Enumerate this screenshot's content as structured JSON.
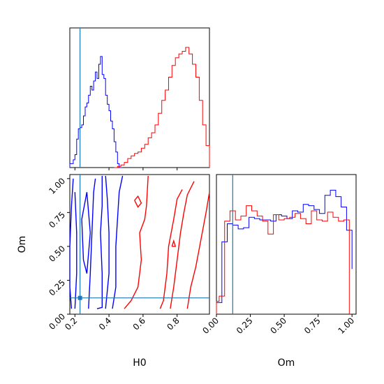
{
  "chart_data": {
    "type": "corner",
    "parameters": [
      "H0",
      "Om"
    ],
    "colors": {
      "sample_a": "#0000ff",
      "sample_b": "#ff0000",
      "truth": "#1f77b4"
    },
    "truth": {
      "H0": 0.23,
      "Om": 0.12
    },
    "axes": {
      "H0": {
        "xlabel": "H0",
        "xlim": [
          0.17,
          0.99
        ],
        "ticks": [
          0.2,
          0.4,
          0.6,
          0.8
        ],
        "tick_labels": [
          "0.2",
          "0.4",
          "0.6",
          "0.8"
        ]
      },
      "Om": {
        "xlabel": "Om",
        "ylabel": "Om",
        "lim": [
          0.0,
          1.03
        ],
        "ticks": [
          0.0,
          0.25,
          0.5,
          0.75,
          1.0
        ],
        "tick_labels": [
          "0.00",
          "0.25",
          "0.50",
          "0.75",
          "1.00"
        ]
      }
    },
    "hist_H0": {
      "series": [
        {
          "color": "#0000ff",
          "x": [
            0.17,
            0.19,
            0.2,
            0.21,
            0.22,
            0.23,
            0.24,
            0.25,
            0.26,
            0.27,
            0.28,
            0.29,
            0.3,
            0.31,
            0.32,
            0.33,
            0.34,
            0.35,
            0.36,
            0.37,
            0.38,
            0.39,
            0.4,
            0.41,
            0.42,
            0.43,
            0.44,
            0.45,
            0.46,
            0.47,
            0.48
          ],
          "values": [
            0.03,
            0.06,
            0.1,
            0.22,
            0.3,
            0.31,
            0.33,
            0.4,
            0.47,
            0.5,
            0.56,
            0.63,
            0.6,
            0.67,
            0.74,
            0.69,
            0.8,
            0.86,
            0.72,
            0.69,
            0.56,
            0.49,
            0.44,
            0.36,
            0.3,
            0.2,
            0.12,
            0.03,
            0.0,
            0.0,
            0.0
          ]
        },
        {
          "color": "#ff0000",
          "x": [
            0.43,
            0.45,
            0.47,
            0.49,
            0.51,
            0.53,
            0.55,
            0.57,
            0.59,
            0.61,
            0.63,
            0.65,
            0.67,
            0.69,
            0.71,
            0.73,
            0.75,
            0.77,
            0.79,
            0.81,
            0.83,
            0.85,
            0.87,
            0.89,
            0.91,
            0.93,
            0.95,
            0.97,
            0.99
          ],
          "values": [
            0.0,
            0.01,
            0.02,
            0.04,
            0.07,
            0.09,
            0.11,
            0.12,
            0.15,
            0.18,
            0.23,
            0.27,
            0.33,
            0.42,
            0.52,
            0.6,
            0.7,
            0.79,
            0.85,
            0.88,
            0.9,
            0.93,
            0.88,
            0.8,
            0.7,
            0.52,
            0.33,
            0.17,
            0.0
          ]
        }
      ]
    },
    "hist_Om": {
      "series": [
        {
          "color": "#0000ff",
          "x": [
            0.0,
            0.04,
            0.08,
            0.12,
            0.16,
            0.2,
            0.24,
            0.28,
            0.32,
            0.36,
            0.4,
            0.44,
            0.48,
            0.52,
            0.56,
            0.6,
            0.64,
            0.68,
            0.72,
            0.76,
            0.8,
            0.84,
            0.88,
            0.92,
            0.96,
            1.0
          ],
          "values": [
            0.09,
            0.56,
            0.7,
            0.69,
            0.66,
            0.67,
            0.75,
            0.74,
            0.73,
            0.73,
            0.72,
            0.77,
            0.76,
            0.74,
            0.8,
            0.79,
            0.85,
            0.84,
            0.81,
            0.78,
            0.92,
            0.96,
            0.91,
            0.83,
            0.65,
            0.35
          ]
        },
        {
          "color": "#ff0000",
          "x": [
            0.0,
            0.02,
            0.06,
            0.1,
            0.14,
            0.18,
            0.22,
            0.26,
            0.3,
            0.34,
            0.38,
            0.42,
            0.46,
            0.5,
            0.54,
            0.58,
            0.62,
            0.66,
            0.7,
            0.74,
            0.78,
            0.82,
            0.86,
            0.9,
            0.94,
            0.98
          ],
          "values": [
            0.1,
            0.14,
            0.72,
            0.8,
            0.73,
            0.76,
            0.84,
            0.8,
            0.76,
            0.72,
            0.62,
            0.77,
            0.73,
            0.74,
            0.75,
            0.78,
            0.74,
            0.7,
            0.8,
            0.73,
            0.72,
            0.79,
            0.75,
            0.72,
            0.73,
            0.0
          ]
        }
      ]
    },
    "contours_H0_Om": [
      {
        "color": "#0000ff",
        "points": [
          [
            0.18,
            0.04
          ],
          [
            0.17,
            0.2
          ],
          [
            0.17,
            0.5
          ],
          [
            0.18,
            0.8
          ],
          [
            0.19,
            1.0
          ]
        ]
      },
      {
        "color": "#0000ff",
        "points": [
          [
            0.2,
            0.04
          ],
          [
            0.21,
            0.3
          ],
          [
            0.21,
            0.6
          ],
          [
            0.2,
            0.9
          ]
        ]
      },
      {
        "color": "#0000ff",
        "points": [
          [
            0.25,
            0.4
          ],
          [
            0.24,
            0.7
          ],
          [
            0.27,
            0.9
          ],
          [
            0.29,
            0.6
          ],
          [
            0.27,
            0.3
          ],
          [
            0.25,
            0.4
          ]
        ]
      },
      {
        "color": "#0000ff",
        "points": [
          [
            0.28,
            0.04
          ],
          [
            0.29,
            0.3
          ],
          [
            0.3,
            0.6
          ],
          [
            0.31,
            0.9
          ],
          [
            0.32,
            1.0
          ]
        ]
      },
      {
        "color": "#0000ff",
        "points": [
          [
            0.33,
            0.04
          ],
          [
            0.36,
            0.05
          ],
          [
            0.36,
            0.3
          ],
          [
            0.35,
            0.6
          ],
          [
            0.36,
            0.8
          ],
          [
            0.36,
            1.02
          ]
        ]
      },
      {
        "color": "#0000ff",
        "points": [
          [
            0.38,
            1.02
          ],
          [
            0.39,
            0.85
          ],
          [
            0.4,
            0.6
          ],
          [
            0.4,
            0.3
          ],
          [
            0.38,
            0.04
          ]
        ]
      },
      {
        "color": "#0000ff",
        "points": [
          [
            0.42,
            0.04
          ],
          [
            0.44,
            0.2
          ],
          [
            0.44,
            0.5
          ],
          [
            0.45,
            0.7
          ],
          [
            0.46,
            0.9
          ],
          [
            0.48,
            1.02
          ]
        ]
      },
      {
        "color": "#ff0000",
        "points": [
          [
            0.49,
            0.04
          ],
          [
            0.53,
            0.1
          ],
          [
            0.57,
            0.2
          ],
          [
            0.59,
            0.4
          ],
          [
            0.58,
            0.6
          ],
          [
            0.61,
            0.7
          ],
          [
            0.62,
            0.8
          ],
          [
            0.63,
            1.02
          ]
        ]
      },
      {
        "color": "#ff0000",
        "points": [
          [
            0.55,
            0.84
          ],
          [
            0.57,
            0.87
          ],
          [
            0.59,
            0.82
          ],
          [
            0.57,
            0.79
          ],
          [
            0.55,
            0.84
          ]
        ]
      },
      {
        "color": "#ff0000",
        "points": [
          [
            0.7,
            0.04
          ],
          [
            0.72,
            0.1
          ],
          [
            0.74,
            0.3
          ],
          [
            0.75,
            0.5
          ],
          [
            0.78,
            0.7
          ],
          [
            0.8,
            0.85
          ],
          [
            0.83,
            0.92
          ]
        ]
      },
      {
        "color": "#ff0000",
        "points": [
          [
            0.76,
            0.04
          ],
          [
            0.78,
            0.2
          ],
          [
            0.8,
            0.4
          ],
          [
            0.82,
            0.6
          ],
          [
            0.84,
            0.75
          ],
          [
            0.86,
            0.88
          ],
          [
            0.9,
            0.98
          ]
        ]
      },
      {
        "color": "#ff0000",
        "points": [
          [
            0.86,
            0.04
          ],
          [
            0.88,
            0.2
          ],
          [
            0.91,
            0.35
          ],
          [
            0.94,
            0.55
          ],
          [
            0.97,
            0.75
          ],
          [
            0.99,
            0.9
          ]
        ]
      },
      {
        "color": "#ff0000",
        "points": [
          [
            0.77,
            0.5
          ],
          [
            0.78,
            0.54
          ],
          [
            0.79,
            0.5
          ],
          [
            0.77,
            0.5
          ]
        ]
      }
    ]
  }
}
